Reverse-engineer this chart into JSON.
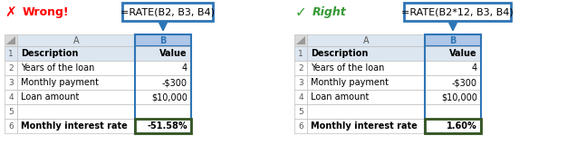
{
  "wrong_label": "Wrong!",
  "right_label": "Right",
  "wrong_formula": "=RATE(B2, B3, B4)",
  "right_formula": "=RATE(B2*12, B3, B4)",
  "wrong_result": "-51.58%",
  "right_result": "1.60%",
  "col_a_header_bg": "#dce6f1",
  "col_b_header_bg_selected": "#aec6e8",
  "row1_bg": "#dce6f1",
  "row6_bg": "#e2efda",
  "grid_color": "#c0c0c0",
  "formula_box_color": "#2e75b6",
  "wrong_color": "#ff0000",
  "right_color": "#339933",
  "arrow_color": "#2e75b6",
  "result_border_color": "#375623",
  "corner_bg": "#d9d9d9",
  "white": "#ffffff",
  "row_num_color": "#595959",
  "col_header_color": "#595959"
}
